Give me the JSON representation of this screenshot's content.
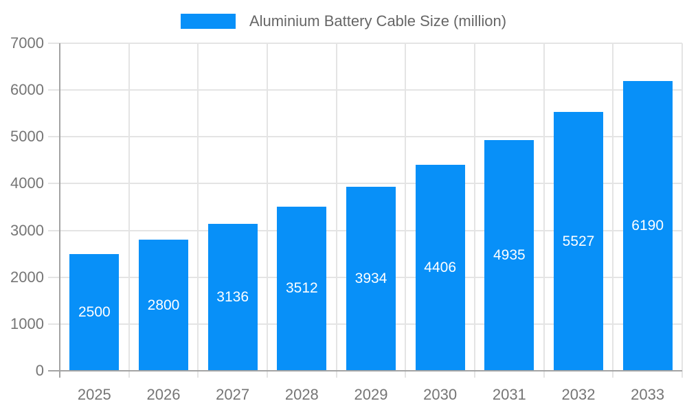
{
  "chart_data": {
    "type": "bar",
    "title": "",
    "legend": "Aluminium Battery Cable Size (million)",
    "legend_position": "top-center",
    "categories": [
      "2025",
      "2026",
      "2027",
      "2028",
      "2029",
      "2030",
      "2031",
      "2032",
      "2033"
    ],
    "values": [
      2500,
      2800,
      3136,
      3512,
      3934,
      4406,
      4935,
      5527,
      6190
    ],
    "xlabel": "",
    "ylabel": "",
    "ylim": [
      0,
      7000
    ],
    "ytick_step": 1000,
    "grid": true,
    "value_labels": "white, centered inside bars",
    "colors": {
      "bar": "#0890f8",
      "grid": "#e4e4e4",
      "axis": "#a3a3a3",
      "tick_label": "#757575",
      "legend_text": "#666666",
      "value_label": "#ffffff",
      "background": "#ffffff"
    }
  }
}
